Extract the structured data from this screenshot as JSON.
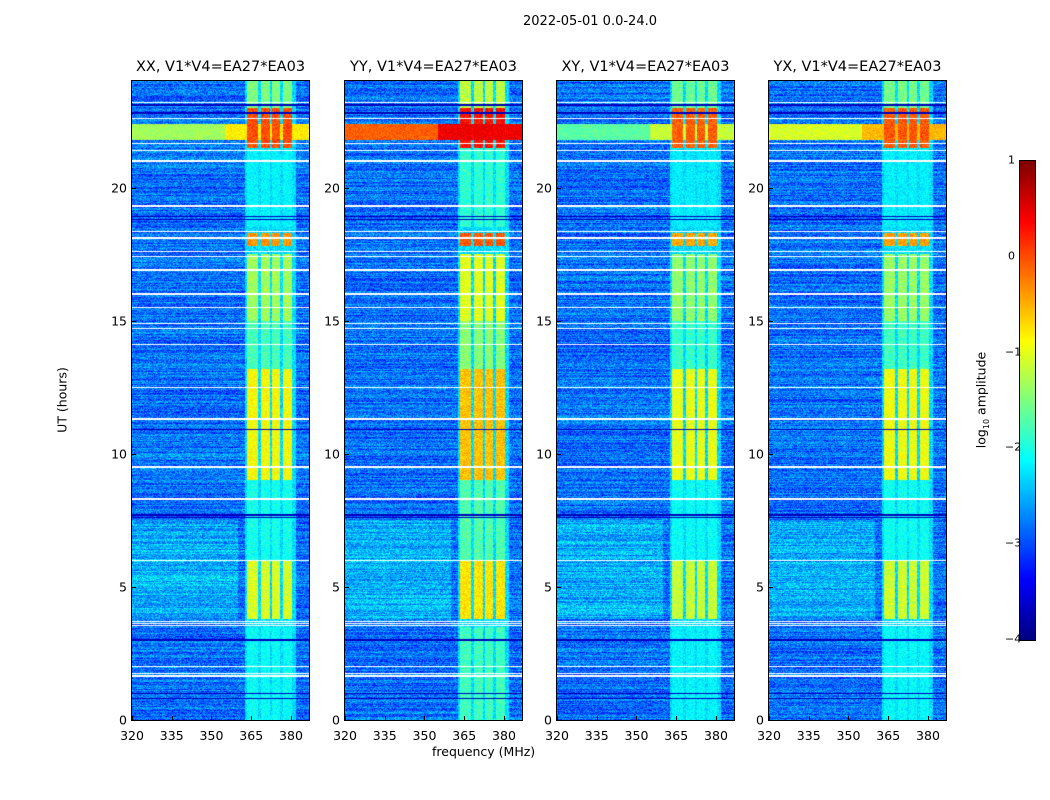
{
  "figure_title": "2022-05-01 0.0-24.0",
  "chart_data": {
    "type": "heatmap",
    "title": "2022-05-01 0.0-24.0",
    "xlabel": "frequency (MHz)",
    "ylabel": "UT (hours)",
    "xlim": [
      320,
      386.8
    ],
    "ylim": [
      0,
      24
    ],
    "xticks": [
      320,
      335,
      350,
      365,
      380
    ],
    "yticks": [
      0,
      5,
      10,
      15,
      20
    ],
    "panels": [
      {
        "title": "XX, V1*V4=EA27*EA03",
        "gain": 0.0,
        "rfi_22h": -1.3
      },
      {
        "title": "YY, V1*V4=EA27*EA03",
        "gain": 0.35,
        "rfi_22h": 0.1
      },
      {
        "title": "XY, V1*V4=EA27*EA03",
        "gain": -0.1,
        "rfi_22h": -1.7
      },
      {
        "title": "YX, V1*V4=EA27*EA03",
        "gain": -0.05,
        "rfi_22h": -1.0
      }
    ],
    "background_log10": -3.0,
    "band_subblocks_mhz": [
      [
        363.5,
        367.5
      ],
      [
        368.5,
        372
      ],
      [
        373,
        376
      ],
      [
        377,
        380.5
      ]
    ],
    "band_activity_log10": [
      {
        "from_h": 0,
        "to_h": 3.5,
        "level": -2.2
      },
      {
        "from_h": 3.8,
        "to_h": 6.0,
        "level": -1.0
      },
      {
        "from_h": 6.0,
        "to_h": 9.0,
        "level": -2.1
      },
      {
        "from_h": 9.0,
        "to_h": 13.2,
        "level": -0.8
      },
      {
        "from_h": 13.2,
        "to_h": 15.0,
        "level": -1.8
      },
      {
        "from_h": 15.0,
        "to_h": 17.5,
        "level": -1.3
      },
      {
        "from_h": 17.8,
        "to_h": 18.3,
        "level": -0.2
      },
      {
        "from_h": 18.5,
        "to_h": 21.5,
        "level": -2.3
      },
      {
        "from_h": 21.5,
        "to_h": 23.0,
        "level": 0.2
      },
      {
        "from_h": 23.0,
        "to_h": 24.0,
        "level": -1.5
      }
    ],
    "flagged_rows_hours": [
      1.65,
      1.75,
      2.0,
      3.55,
      3.62,
      3.7,
      6.0,
      8.3,
      9.5,
      11.3,
      12.5,
      14.1,
      14.7,
      14.9,
      15.5,
      16.0,
      16.9,
      17.4,
      17.6,
      18.1,
      18.35,
      19.3,
      21.0,
      21.4,
      21.65,
      22.6,
      23.2
    ],
    "dark_rows_hours": [
      0.8,
      1.0,
      3.0,
      7.6,
      7.7,
      10.9,
      18.8,
      18.9,
      22.8,
      23.1
    ],
    "colorbar": {
      "label": "log10 amplitude",
      "label_main": "log",
      "label_sub": "10",
      "label_rest": " amplitude",
      "range": [
        -4,
        1
      ],
      "ticks": [
        "1",
        "0",
        "−1",
        "−2",
        "−3",
        "−4"
      ],
      "colormap": "jet"
    }
  }
}
